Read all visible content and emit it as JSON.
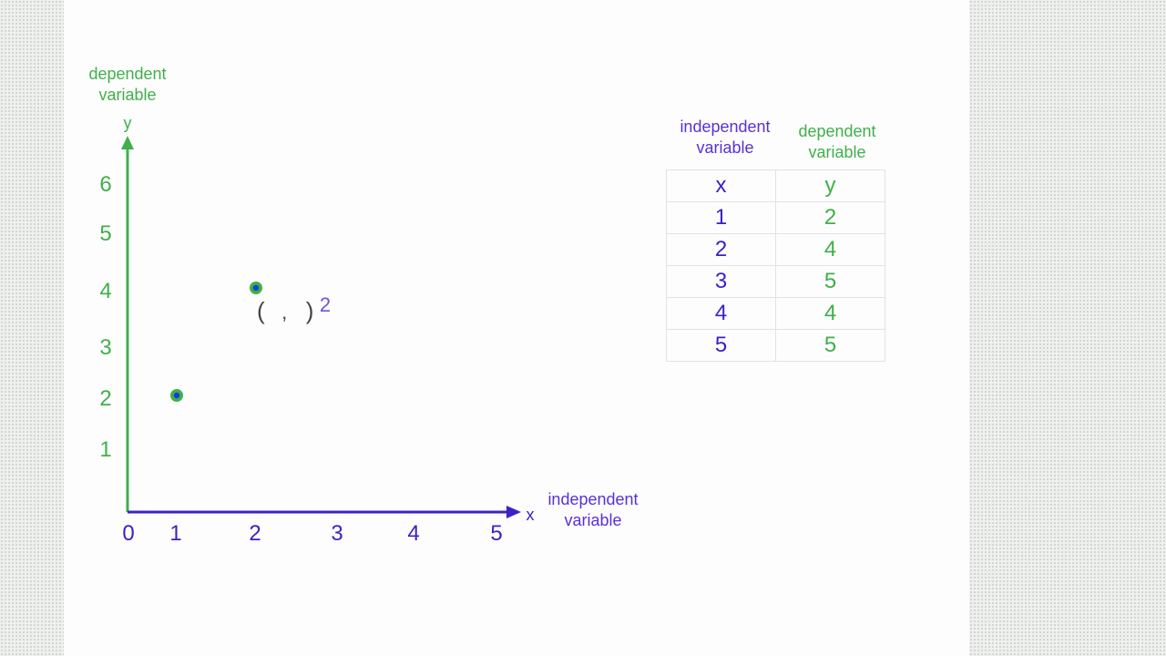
{
  "chart_data": {
    "type": "scatter",
    "x_axis": {
      "symbol": "x",
      "label": "independent variable",
      "ticks": [
        "0",
        "1",
        "2",
        "3",
        "4",
        "5"
      ],
      "range": [
        0,
        5
      ],
      "color": "#3a22c4"
    },
    "y_axis": {
      "symbol": "y",
      "label": "dependent variable",
      "ticks": [
        "1",
        "2",
        "3",
        "4",
        "5",
        "6"
      ],
      "range": [
        0,
        6
      ],
      "color": "#3fb04a"
    },
    "points": [
      {
        "x": 1,
        "y": 2
      },
      {
        "x": 2,
        "y": 4
      }
    ],
    "point_style": {
      "fill": "#1a3ad8",
      "ring": "#3fb04a"
    },
    "annotation": {
      "open": "(",
      "comma": ",",
      "close": ")",
      "value": "2"
    },
    "grid": false,
    "legend": false
  },
  "table": {
    "headers": {
      "x_caption": "independent variable",
      "y_caption": "dependent variable",
      "x_symbol": "x",
      "y_symbol": "y"
    },
    "rows": [
      {
        "x": "1",
        "y": "2"
      },
      {
        "x": "2",
        "y": "4"
      },
      {
        "x": "3",
        "y": "5"
      },
      {
        "x": "4",
        "y": "4"
      },
      {
        "x": "5",
        "y": "5"
      }
    ]
  }
}
